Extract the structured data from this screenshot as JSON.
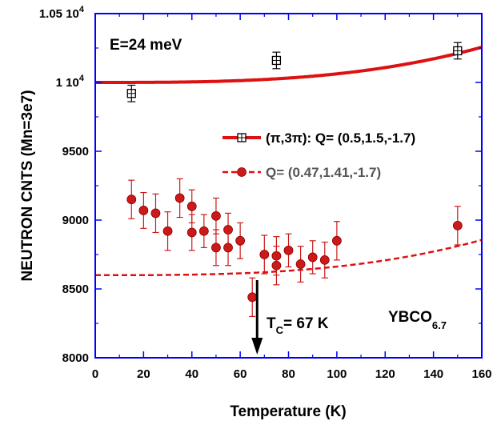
{
  "chart_data": {
    "type": "scatter",
    "xlabel": "Temperature (K)",
    "ylabel": "NEUTRON CNTS (Mn=3e7)",
    "xlim": [
      0,
      160
    ],
    "ylim": [
      8000,
      10500
    ],
    "x_ticks": [
      {
        "value": 0,
        "label": "0"
      },
      {
        "value": 20,
        "label": "20"
      },
      {
        "value": 40,
        "label": "40"
      },
      {
        "value": 60,
        "label": "60"
      },
      {
        "value": 80,
        "label": "80"
      },
      {
        "value": 100,
        "label": "100"
      },
      {
        "value": 120,
        "label": "120"
      },
      {
        "value": 140,
        "label": "140"
      },
      {
        "value": 160,
        "label": "160"
      }
    ],
    "y_ticks": [
      {
        "value": 8000,
        "label": "8000"
      },
      {
        "value": 8500,
        "label": "8500"
      },
      {
        "value": 9000,
        "label": "9000"
      },
      {
        "value": 9500,
        "label": "9500"
      },
      {
        "value": 10000,
        "label": "1 10"
      },
      {
        "value": 10500,
        "label": "1.05 10"
      }
    ],
    "y_tick_superscript": "4",
    "annotations": {
      "energy": "E=24 meV",
      "tc_main": "T",
      "tc_sub": "C",
      "tc_rest": "= 67 K",
      "sample_main": "YBCO",
      "sample_sub": "6.7",
      "tc_arrow_x": 67
    },
    "legend": [
      {
        "text": "(π,3π): Q= (0.5,1.5,-1.7)",
        "marker": "open-square",
        "line": "solid",
        "text_color": "#000000"
      },
      {
        "text": "Q= (0.47,1.41,-1.7)",
        "marker": "filled-circle",
        "line": "dashed",
        "text_color": "#555555"
      }
    ],
    "series": [
      {
        "marker": "open-square",
        "color": "#000000",
        "x": [
          15,
          75,
          150
        ],
        "y": [
          9920,
          10160,
          10230
        ],
        "err": [
          60,
          60,
          60
        ]
      },
      {
        "marker": "filled-circle",
        "color": "#cc1a1a",
        "x": [
          15,
          20,
          25,
          30,
          35,
          40,
          40,
          45,
          50,
          50,
          55,
          55,
          60,
          65,
          70,
          75,
          75,
          80,
          85,
          90,
          95,
          100,
          150
        ],
        "y": [
          9150,
          9070,
          9050,
          8920,
          9160,
          9100,
          8910,
          8920,
          9030,
          8800,
          8930,
          8800,
          8850,
          8440,
          8750,
          8740,
          8670,
          8780,
          8680,
          8730,
          8710,
          8850,
          8960
        ],
        "err": [
          140,
          130,
          140,
          140,
          140,
          120,
          130,
          120,
          130,
          130,
          120,
          130,
          130,
          140,
          140,
          140,
          140,
          120,
          130,
          120,
          130,
          140,
          140
        ]
      }
    ],
    "fits": [
      {
        "style": "solid",
        "color": "#dd1111",
        "x0": 0,
        "y0": 10000,
        "k": 6.25e-05
      },
      {
        "style": "dashed",
        "color": "#dd1111",
        "x0": 0,
        "y0": 8600,
        "k": 6.25e-05
      }
    ],
    "axis_color": "#0000ff",
    "grid": false
  }
}
